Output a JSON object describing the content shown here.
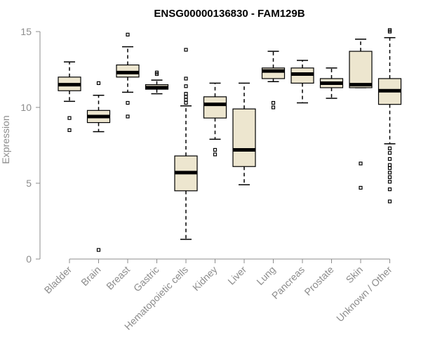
{
  "chart_data": {
    "type": "boxplot",
    "title": "ENSG00000136830 - FAM129B",
    "xlabel": "",
    "ylabel": "Expression",
    "ylim": [
      0,
      15
    ],
    "yticks": [
      0,
      5,
      10,
      15
    ],
    "grid": false,
    "categories": [
      "Bladder",
      "Brain",
      "Breast",
      "Gastric",
      "Hematopoietic cells",
      "Kidney",
      "Liver",
      "Lung",
      "Pancreas",
      "Prostate",
      "Skin",
      "Unknown / Other"
    ],
    "boxes": [
      {
        "category": "Bladder",
        "whisker_low": 10.4,
        "q1": 11.1,
        "median": 11.5,
        "q3": 12.0,
        "whisker_high": 13.0,
        "outliers": [
          9.3,
          8.5
        ]
      },
      {
        "category": "Brain",
        "whisker_low": 8.4,
        "q1": 9.0,
        "median": 9.4,
        "q3": 9.8,
        "whisker_high": 10.8,
        "outliers": [
          11.6,
          0.6
        ]
      },
      {
        "category": "Breast",
        "whisker_low": 11.0,
        "q1": 12.0,
        "median": 12.3,
        "q3": 12.8,
        "whisker_high": 14.0,
        "outliers": [
          14.8,
          10.3,
          9.4
        ]
      },
      {
        "category": "Gastric",
        "whisker_low": 10.9,
        "q1": 11.2,
        "median": 11.3,
        "q3": 11.5,
        "whisker_high": 11.8,
        "outliers": [
          12.3,
          12.2
        ]
      },
      {
        "category": "Hematopoietic cells",
        "whisker_low": 1.3,
        "q1": 4.5,
        "median": 5.7,
        "q3": 6.8,
        "whisker_high": 10.1,
        "outliers": [
          13.8,
          11.9,
          11.4,
          10.9,
          10.7,
          10.5,
          10.3
        ]
      },
      {
        "category": "Kidney",
        "whisker_low": 7.9,
        "q1": 9.3,
        "median": 10.2,
        "q3": 10.7,
        "whisker_high": 11.6,
        "outliers": [
          7.2,
          6.9
        ]
      },
      {
        "category": "Liver",
        "whisker_low": 4.9,
        "q1": 6.1,
        "median": 7.2,
        "q3": 9.9,
        "whisker_high": 11.6,
        "outliers": []
      },
      {
        "category": "Lung",
        "whisker_low": 11.7,
        "q1": 11.9,
        "median": 12.4,
        "q3": 12.6,
        "whisker_high": 13.7,
        "outliers": [
          10.3,
          10.0
        ]
      },
      {
        "category": "Pancreas",
        "whisker_low": 10.3,
        "q1": 11.6,
        "median": 12.2,
        "q3": 12.6,
        "whisker_high": 13.1,
        "outliers": []
      },
      {
        "category": "Prostate",
        "whisker_low": 10.6,
        "q1": 11.3,
        "median": 11.6,
        "q3": 11.9,
        "whisker_high": 12.6,
        "outliers": []
      },
      {
        "category": "Skin",
        "whisker_low": 11.3,
        "q1": 11.3,
        "median": 11.5,
        "q3": 13.7,
        "whisker_high": 14.5,
        "outliers": [
          6.3,
          4.7
        ]
      },
      {
        "category": "Unknown / Other",
        "whisker_low": 7.6,
        "q1": 10.2,
        "median": 11.1,
        "q3": 11.9,
        "whisker_high": 14.6,
        "outliers": [
          15.1,
          15.0,
          7.3,
          7.0,
          6.6,
          6.2,
          6.0,
          5.7,
          5.4,
          5.1,
          4.6,
          3.8
        ]
      }
    ],
    "colors": {
      "box_fill": "#ede6cf",
      "box_stroke": "#000000",
      "axis": "#8c8c8c"
    }
  }
}
